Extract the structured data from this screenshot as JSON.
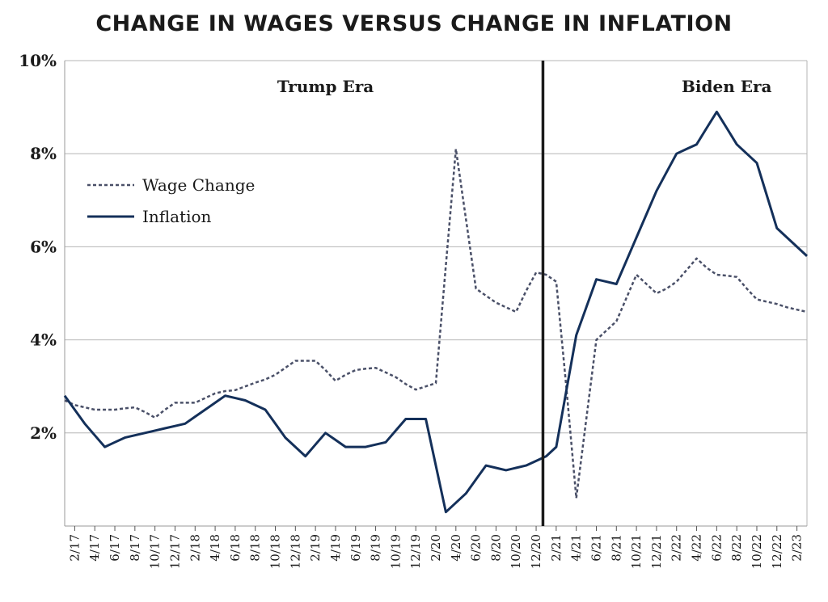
{
  "chart_data": {
    "type": "line",
    "title": "CHANGE IN WAGES VERSUS CHANGE IN INFLATION",
    "xlabel": "",
    "ylabel": "",
    "ylim": [
      0,
      10
    ],
    "yticks": [
      2,
      4,
      6,
      8,
      10
    ],
    "ytick_labels": [
      "2%",
      "4%",
      "6%",
      "8%",
      "10%"
    ],
    "grid": true,
    "legend_position": "left",
    "x": [
      "1/17",
      "2/17",
      "3/17",
      "4/17",
      "5/17",
      "6/17",
      "7/17",
      "8/17",
      "9/17",
      "10/17",
      "11/17",
      "12/17",
      "1/18",
      "2/18",
      "3/18",
      "4/18",
      "5/18",
      "6/18",
      "7/18",
      "8/18",
      "9/18",
      "10/18",
      "11/18",
      "12/18",
      "1/19",
      "2/19",
      "3/19",
      "4/19",
      "5/19",
      "6/19",
      "7/19",
      "8/19",
      "9/19",
      "10/19",
      "11/19",
      "12/19",
      "1/20",
      "2/20",
      "3/20",
      "4/20",
      "5/20",
      "6/20",
      "7/20",
      "8/20",
      "9/20",
      "10/20",
      "11/20",
      "12/20",
      "1/21",
      "2/21",
      "3/21",
      "4/21",
      "5/21",
      "6/21",
      "7/21",
      "8/21",
      "9/21",
      "10/21",
      "11/21",
      "12/21",
      "1/22",
      "2/22",
      "3/22",
      "4/22",
      "5/22",
      "6/22",
      "7/22",
      "8/22",
      "9/22",
      "10/22",
      "11/22",
      "12/22",
      "1/23",
      "2/23",
      "3/23"
    ],
    "xtick_labels": [
      "2/17",
      "4/17",
      "6/17",
      "8/17",
      "10/17",
      "12/17",
      "2/18",
      "4/18",
      "6/18",
      "8/18",
      "10/18",
      "12/18",
      "2/19",
      "4/19",
      "6/19",
      "8/19",
      "10/19",
      "12/19",
      "2/20",
      "4/20",
      "6/20",
      "8/20",
      "10/20",
      "12/20",
      "2/21",
      "4/21",
      "6/21",
      "8/21",
      "10/21",
      "12/21",
      "2/22",
      "4/22",
      "6/22",
      "8/22",
      "10/22",
      "12/22",
      "2/23"
    ],
    "series": [
      {
        "name": "Wage Change",
        "style": "dashed",
        "color": "#4a5068",
        "values": [
          2.7,
          2.6,
          2.55,
          2.5,
          2.5,
          2.5,
          2.53,
          2.55,
          2.45,
          2.33,
          2.5,
          2.65,
          2.65,
          2.65,
          2.75,
          2.85,
          2.9,
          2.92,
          3.0,
          3.08,
          3.15,
          3.25,
          3.4,
          3.55,
          3.55,
          3.55,
          3.35,
          3.12,
          3.25,
          3.35,
          3.38,
          3.4,
          3.3,
          3.2,
          3.05,
          2.93,
          3.0,
          3.07,
          5.6,
          8.1,
          6.6,
          5.1,
          4.95,
          4.8,
          4.7,
          4.6,
          5.05,
          5.45,
          5.4,
          5.25,
          3.0,
          0.6,
          2.3,
          4.0,
          4.2,
          4.4,
          4.9,
          5.4,
          5.2,
          5.0,
          5.1,
          5.25,
          5.5,
          5.75,
          5.55,
          5.4,
          5.38,
          5.35,
          5.1,
          4.87,
          4.82,
          4.77,
          4.7,
          4.65,
          4.6
        ]
      },
      {
        "name": "Inflation",
        "style": "solid",
        "color": "#14305a",
        "values": [
          2.8,
          2.5,
          2.2,
          1.95,
          1.7,
          1.8,
          1.9,
          1.95,
          2.0,
          2.05,
          2.1,
          2.15,
          2.2,
          2.35,
          2.5,
          2.65,
          2.8,
          2.75,
          2.7,
          2.6,
          2.5,
          2.2,
          1.9,
          1.7,
          1.5,
          1.75,
          2.0,
          1.85,
          1.7,
          1.7,
          1.7,
          1.75,
          1.8,
          2.05,
          2.3,
          2.3,
          2.3,
          1.3,
          0.3,
          0.5,
          0.7,
          1.0,
          1.3,
          1.25,
          1.2,
          1.25,
          1.3,
          1.4,
          1.5,
          1.7,
          2.9,
          4.1,
          4.7,
          5.3,
          5.25,
          5.2,
          5.7,
          6.2,
          6.7,
          7.2,
          7.6,
          8.0,
          8.1,
          8.2,
          8.55,
          8.9,
          8.55,
          8.2,
          8.0,
          7.8,
          7.1,
          6.4,
          6.2,
          6.0,
          5.8
        ]
      }
    ],
    "annotations": [
      {
        "text": "Trump Era",
        "near_x": "3/19"
      },
      {
        "text": "Biden Era",
        "near_x": "7/22"
      }
    ],
    "divider_at_x": "1/21"
  }
}
